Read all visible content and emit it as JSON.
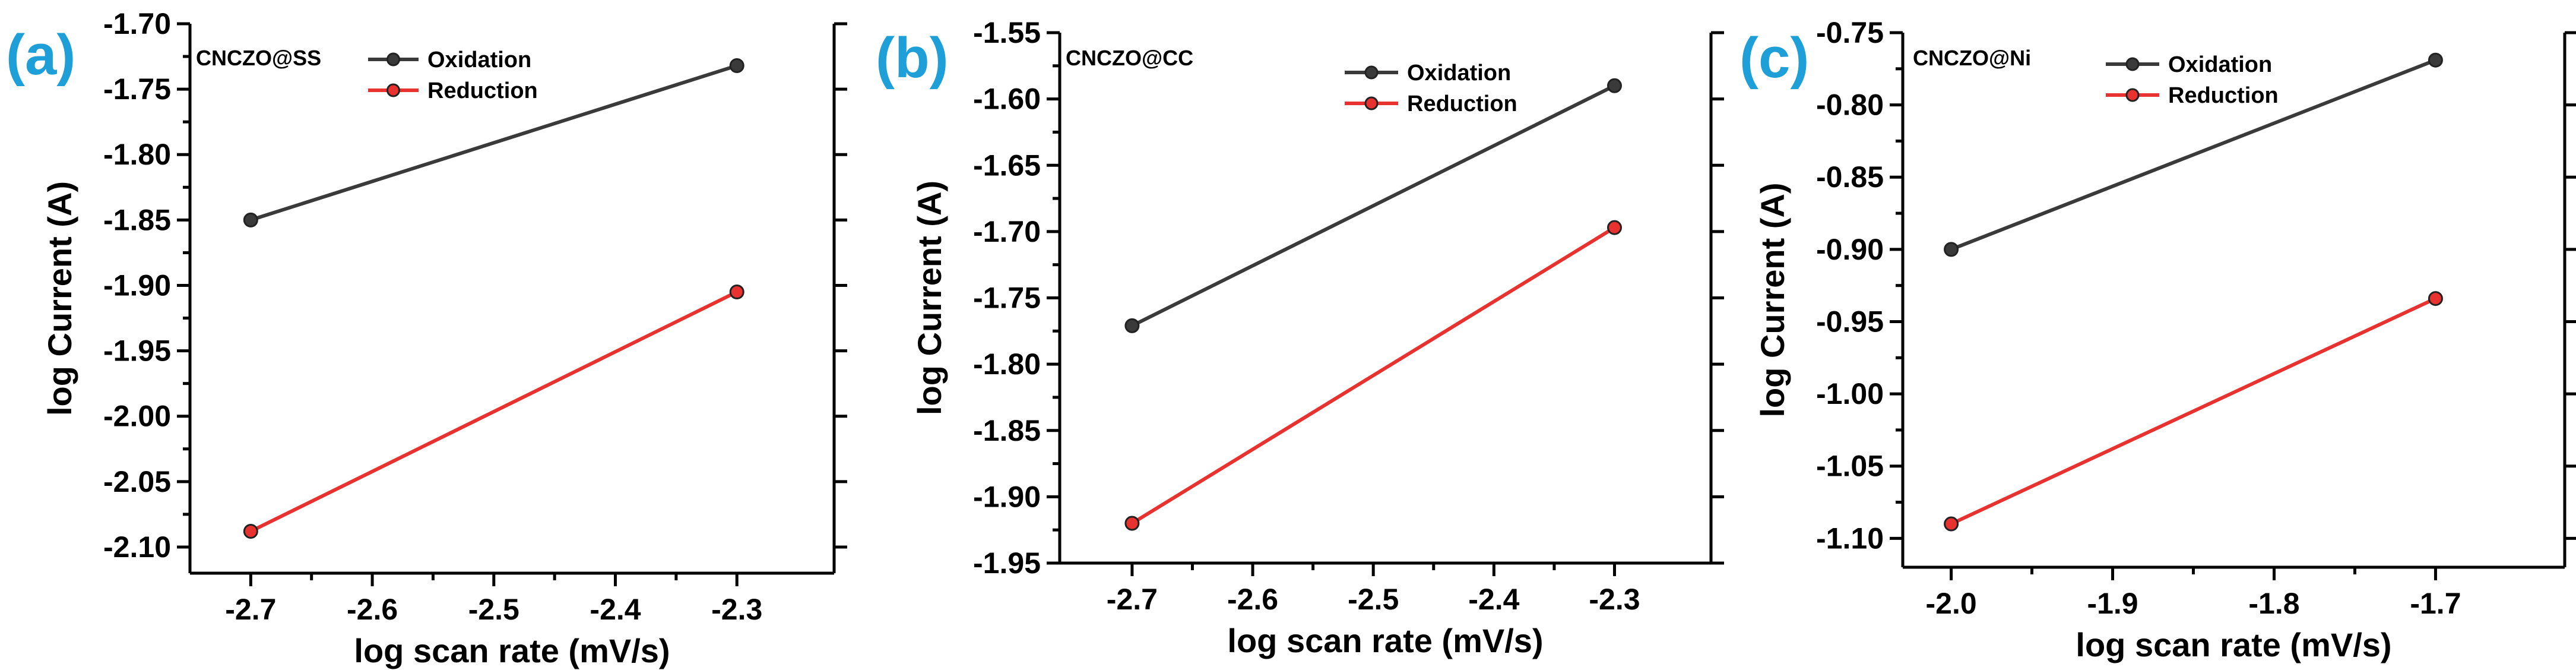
{
  "chart_data": [
    {
      "type": "line",
      "panel_label": "(a)",
      "title": "CNCZO@SS",
      "xlabel": "log scan rate (mV/s)",
      "ylabel": "log Current (A)",
      "xlim": [
        -2.75,
        -2.22
      ],
      "ylim": [
        -2.12,
        -1.7
      ],
      "xticks": [
        -2.7,
        -2.6,
        -2.5,
        -2.4,
        -2.3
      ],
      "xtick_labels": [
        "-2.7",
        "-2.6",
        "-2.5",
        "-2.4",
        "-2.3"
      ],
      "yticks": [
        -2.1,
        -2.05,
        -2.0,
        -1.95,
        -1.9,
        -1.85,
        -1.8,
        -1.75,
        -1.7
      ],
      "ytick_labels": [
        "-2.10",
        "-2.05",
        "-2.00",
        "-1.95",
        "-1.90",
        "-1.85",
        "-1.80",
        "-1.75",
        "-1.70"
      ],
      "legend_position": "top-center",
      "series": [
        {
          "name": "Oxidation",
          "color": "#3a3a3a",
          "x": [
            -2.7,
            -2.3
          ],
          "y": [
            -1.85,
            -1.732
          ]
        },
        {
          "name": "Reduction",
          "color": "#e8322f",
          "x": [
            -2.7,
            -2.3
          ],
          "y": [
            -2.088,
            -1.905
          ]
        }
      ]
    },
    {
      "type": "line",
      "panel_label": "(b)",
      "title": "CNCZO@CC",
      "xlabel": "log scan rate (mV/s)",
      "ylabel": "log Current (A)",
      "xlim": [
        -2.76,
        -2.22
      ],
      "ylim": [
        -1.95,
        -1.55
      ],
      "xticks": [
        -2.7,
        -2.6,
        -2.5,
        -2.4,
        -2.3
      ],
      "xtick_labels": [
        "-2.7",
        "-2.6",
        "-2.5",
        "-2.4",
        "-2.3"
      ],
      "yticks": [
        -1.95,
        -1.9,
        -1.85,
        -1.8,
        -1.75,
        -1.7,
        -1.65,
        -1.6,
        -1.55
      ],
      "ytick_labels": [
        "-1.95",
        "-1.90",
        "-1.85",
        "-1.80",
        "-1.75",
        "-1.70",
        "-1.65",
        "-1.60",
        "-1.55"
      ],
      "legend_position": "top-right",
      "series": [
        {
          "name": "Oxidation",
          "color": "#3a3a3a",
          "x": [
            -2.7,
            -2.3
          ],
          "y": [
            -1.771,
            -1.59
          ]
        },
        {
          "name": "Reduction",
          "color": "#e8322f",
          "x": [
            -2.7,
            -2.3
          ],
          "y": [
            -1.92,
            -1.697
          ]
        }
      ]
    },
    {
      "type": "line",
      "panel_label": "(c)",
      "title": "CNCZO@Ni",
      "xlabel": "log scan rate (mV/s)",
      "ylabel": "log Current (A)",
      "xlim": [
        -2.03,
        -1.62
      ],
      "ylim": [
        -1.12,
        -0.75
      ],
      "xticks": [
        -2.0,
        -1.9,
        -1.8,
        -1.7
      ],
      "xtick_labels": [
        "-2.0",
        "-1.9",
        "-1.8",
        "-1.7"
      ],
      "yticks": [
        -1.1,
        -1.05,
        -1.0,
        -0.95,
        -0.9,
        -0.85,
        -0.8,
        -0.75
      ],
      "ytick_labels": [
        "-1.10",
        "-1.05",
        "-1.00",
        "-0.95",
        "-0.90",
        "-0.85",
        "-0.80",
        "-0.75"
      ],
      "legend_position": "top-center",
      "series": [
        {
          "name": "Oxidation",
          "color": "#3a3a3a",
          "x": [
            -2.0,
            -1.7
          ],
          "y": [
            -0.9,
            -0.769
          ]
        },
        {
          "name": "Reduction",
          "color": "#e8322f",
          "x": [
            -2.0,
            -1.7
          ],
          "y": [
            -1.09,
            -0.934
          ]
        }
      ]
    }
  ]
}
